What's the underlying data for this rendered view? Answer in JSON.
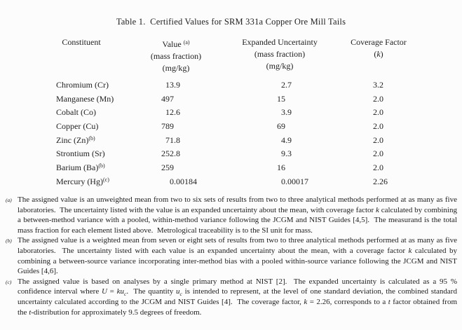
{
  "title": "Table 1.  Certified Values for SRM 331a Copper Ore Mill Tails",
  "table": {
    "headers": {
      "constituent": "Constituent",
      "value": {
        "label": "Value",
        "sup": "(a)",
        "line2": "(mass fraction)",
        "line3": "(mg/kg)"
      },
      "uncertainty": {
        "label": "Expanded Uncertainty",
        "line2": "(mass fraction)",
        "line3": "(mg/kg)"
      },
      "coverage": {
        "label": "Coverage Factor",
        "line2_open": "(",
        "line2_k": "k",
        "line2_close": ")"
      }
    },
    "rows": [
      {
        "constituent": "Chromium (Cr)",
        "marker": "",
        "value": "13.9",
        "uncertainty": "2.7",
        "coverage": "3.2"
      },
      {
        "constituent": "Manganese (Mn)",
        "marker": "",
        "value": "497",
        "uncertainty": "15",
        "coverage": "2.0"
      },
      {
        "constituent": "Cobalt (Co)",
        "marker": "",
        "value": "12.6",
        "uncertainty": "3.9",
        "coverage": "2.0"
      },
      {
        "constituent": "Copper (Cu)",
        "marker": "",
        "value": "789",
        "uncertainty": "69",
        "coverage": "2.0"
      },
      {
        "constituent": "Zinc (Zn)",
        "marker": "(b)",
        "value": "71.8",
        "uncertainty": "4.9",
        "coverage": "2.0"
      },
      {
        "constituent": "Strontium (Sr)",
        "marker": "",
        "value": "252.8",
        "uncertainty": "9.3",
        "coverage": "2.0"
      },
      {
        "constituent": "Barium (Ba)",
        "marker": "(b)",
        "value": "259",
        "uncertainty": "16",
        "coverage": "2.0"
      },
      {
        "constituent": "Mercury (Hg)",
        "marker": "(c)",
        "value": "0.00184",
        "uncertainty": "0.00017",
        "coverage": "2.26"
      }
    ]
  },
  "footnotes": [
    {
      "marker": "(a)",
      "segments": [
        {
          "t": "The assigned value is an unweighted mean from two to six sets of results from two to three analytical methods performed at as many as five laboratories.  The uncertainty listed with the value is an expanded uncertainty about the mean, with coverage factor "
        },
        {
          "t": "k",
          "i": true
        },
        {
          "t": " calculated by combining a between-method variance with a pooled, within-method variance following the JCGM and NIST Guides [4,5].  The measurand is the total mass fraction for each element listed above.  Metrological traceability is to the SI unit for mass."
        }
      ]
    },
    {
      "marker": "(b)",
      "segments": [
        {
          "t": "The assigned value is a weighted mean from seven or eight sets of results from two to three analytical methods performed at as many as five laboratories.  The uncertainty listed with each value is an expanded uncertainty about the mean, with a coverage factor "
        },
        {
          "t": "k",
          "i": true
        },
        {
          "t": " calculated by combining a between-source variance incorporating inter-method bias with a pooled within-source variance following the JCGM and NIST Guides [4,6]."
        }
      ]
    },
    {
      "marker": "(c)",
      "segments": [
        {
          "t": "The assigned value is based on analyses by a single primary method at NIST [2].  The expanded uncertainty is calculated as a 95 % confidence interval where "
        },
        {
          "t": "U",
          "i": true
        },
        {
          "t": " = "
        },
        {
          "t": "ku",
          "i": true
        },
        {
          "t": "c",
          "i": true,
          "sub": true
        },
        {
          "t": ".  The quantity "
        },
        {
          "t": "u",
          "i": true
        },
        {
          "t": "c",
          "i": true,
          "sub": true
        },
        {
          "t": " is intended to represent, at the level of one standard deviation, the combined standard uncertainty calculated according to the JCGM and NIST Guides [4].  The coverage factor, "
        },
        {
          "t": "k",
          "i": true
        },
        {
          "t": " = 2.26, corresponds to a "
        },
        {
          "t": "t",
          "i": true
        },
        {
          "t": " factor obtained from the "
        },
        {
          "t": "t",
          "i": true
        },
        {
          "t": "-distribution for approximately 9.5 degrees of freedom."
        }
      ]
    }
  ]
}
